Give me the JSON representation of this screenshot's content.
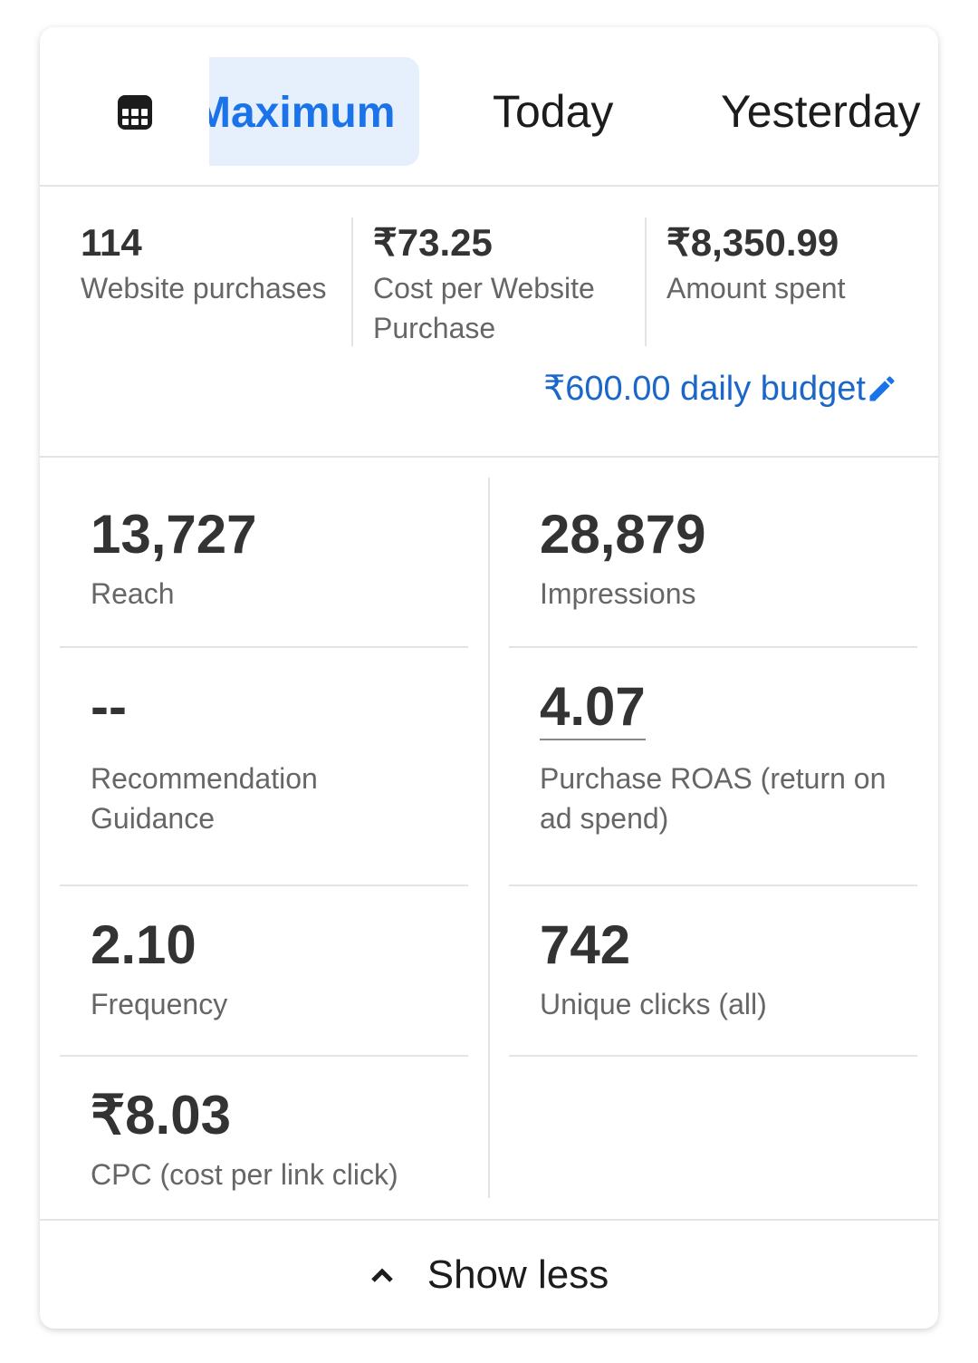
{
  "tabs": {
    "icon": "table-grid-icon",
    "items": [
      {
        "label": "Maximum",
        "active": true
      },
      {
        "label": "Today"
      },
      {
        "label": "Yesterday"
      }
    ]
  },
  "summary": {
    "items": [
      {
        "value": "114",
        "label": "Website purchases"
      },
      {
        "value": "₹73.25",
        "label": "Cost per Website Purchase"
      },
      {
        "value": "₹8,350.99",
        "label": "Amount spent"
      }
    ],
    "budget": "₹600.00 daily budget",
    "budget_icon": "pencil-icon"
  },
  "metrics": [
    {
      "value": "13,727",
      "label": "Reach"
    },
    {
      "value": "28,879",
      "label": "Impressions"
    },
    {
      "value": "--",
      "label": "Recommendation Guidance"
    },
    {
      "value": "4.07",
      "label": "Purchase ROAS (return on ad spend)"
    },
    {
      "value": "2.10",
      "label": "Frequency"
    },
    {
      "value": "742",
      "label": "Unique clicks (all)"
    },
    {
      "value": "₹8.03",
      "label": "CPC (cost per link click)"
    }
  ],
  "footer": {
    "label": "Show less",
    "icon": "chevron-up-icon"
  },
  "colors": {
    "accent": "#1a73e8",
    "tab_highlight": "#e6f0fd",
    "link": "#1a66c9"
  }
}
